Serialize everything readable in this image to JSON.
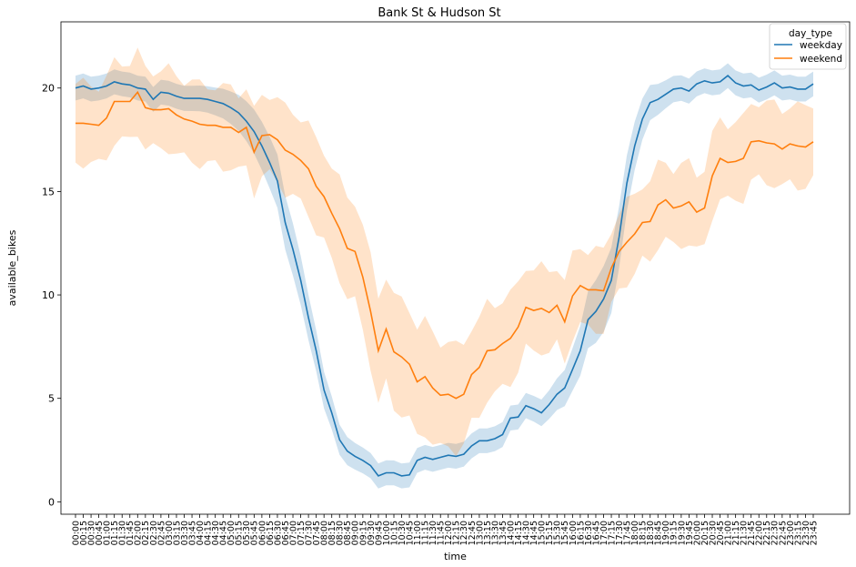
{
  "chart_data": {
    "type": "line",
    "title": "Bank St & Hudson St",
    "xlabel": "time",
    "ylabel": "available_bikes",
    "ylim": [
      -0.6,
      23.2
    ],
    "yticks": [
      0,
      5,
      10,
      15,
      20
    ],
    "grid": false,
    "legend": {
      "title": "day_type",
      "placement": "top-right"
    },
    "x": [
      "00:00",
      "00:15",
      "00:30",
      "00:45",
      "01:00",
      "01:15",
      "01:30",
      "01:45",
      "02:00",
      "02:15",
      "02:30",
      "02:45",
      "03:00",
      "03:15",
      "03:30",
      "03:45",
      "04:00",
      "04:15",
      "04:30",
      "04:45",
      "05:00",
      "05:15",
      "05:30",
      "05:45",
      "06:00",
      "06:15",
      "06:30",
      "06:45",
      "07:00",
      "07:15",
      "07:30",
      "07:45",
      "08:00",
      "08:15",
      "08:30",
      "08:45",
      "09:00",
      "09:15",
      "09:30",
      "09:45",
      "10:00",
      "10:15",
      "10:30",
      "10:45",
      "11:00",
      "11:15",
      "11:30",
      "11:45",
      "12:00",
      "12:15",
      "12:30",
      "12:45",
      "13:00",
      "13:15",
      "13:30",
      "13:45",
      "14:00",
      "14:15",
      "14:30",
      "14:45",
      "15:00",
      "15:15",
      "15:30",
      "15:45",
      "16:00",
      "16:15",
      "16:30",
      "16:45",
      "17:00",
      "17:15",
      "17:30",
      "17:45",
      "18:00",
      "18:15",
      "18:30",
      "18:45",
      "19:00",
      "19:15",
      "19:30",
      "19:45",
      "20:00",
      "20:15",
      "20:30",
      "20:45",
      "21:00",
      "21:15",
      "21:30",
      "21:45",
      "22:00",
      "22:15",
      "22:30",
      "22:45",
      "23:00",
      "23:15",
      "23:30",
      "23:45"
    ],
    "series": [
      {
        "name": "weekday",
        "color": "#1f77b4",
        "values": [
          20.0,
          20.1,
          19.95,
          20.0,
          20.1,
          20.3,
          20.2,
          20.15,
          20.0,
          19.95,
          19.45,
          19.8,
          19.75,
          19.6,
          19.5,
          19.5,
          19.5,
          19.45,
          19.35,
          19.25,
          19.05,
          18.8,
          18.4,
          17.9,
          17.2,
          16.4,
          15.5,
          13.5,
          12.2,
          10.7,
          8.9,
          7.3,
          5.4,
          4.3,
          3.0,
          2.45,
          2.2,
          2.0,
          1.75,
          1.25,
          1.4,
          1.4,
          1.25,
          1.3,
          2.0,
          2.15,
          2.05,
          2.15,
          2.25,
          2.2,
          2.3,
          2.7,
          2.95,
          2.95,
          3.05,
          3.25,
          4.05,
          4.1,
          4.65,
          4.5,
          4.3,
          4.7,
          5.2,
          5.5,
          6.4,
          7.3,
          8.8,
          9.2,
          9.8,
          10.7,
          12.8,
          15.4,
          17.2,
          18.5,
          19.3,
          19.45,
          19.7,
          19.95,
          20.0,
          19.85,
          20.2,
          20.35,
          20.25,
          20.3,
          20.6,
          20.25,
          20.1,
          20.15,
          19.9,
          20.05,
          20.25,
          20.0,
          20.05,
          19.95,
          19.95,
          20.2
        ]
      },
      {
        "name": "weekend",
        "color": "#ff7f0e",
        "values": [
          18.3,
          18.3,
          18.25,
          18.2,
          18.55,
          19.35,
          19.35,
          19.35,
          19.8,
          19.05,
          18.95,
          18.95,
          19.0,
          18.7,
          18.5,
          18.4,
          18.25,
          18.2,
          18.2,
          18.1,
          18.1,
          17.85,
          18.1,
          16.9,
          17.7,
          17.75,
          17.5,
          17.0,
          16.8,
          16.5,
          16.1,
          15.25,
          14.75,
          13.95,
          13.2,
          12.25,
          12.1,
          10.85,
          9.2,
          7.3,
          8.35,
          7.25,
          7.0,
          6.65,
          5.8,
          6.05,
          5.5,
          5.15,
          5.2,
          5.0,
          5.2,
          6.15,
          6.5,
          7.3,
          7.35,
          7.65,
          7.9,
          8.45,
          9.4,
          9.25,
          9.35,
          9.15,
          9.5,
          8.7,
          9.95,
          10.45,
          10.25,
          10.25,
          10.2,
          11.3,
          12.1,
          12.55,
          12.95,
          13.5,
          13.55,
          14.35,
          14.6,
          14.2,
          14.3,
          14.5,
          14.0,
          14.2,
          15.75,
          16.6,
          16.4,
          16.45,
          16.6,
          17.4,
          17.45,
          17.35,
          17.3,
          17.05,
          17.3,
          17.2,
          17.15,
          17.4
        ]
      }
    ]
  }
}
